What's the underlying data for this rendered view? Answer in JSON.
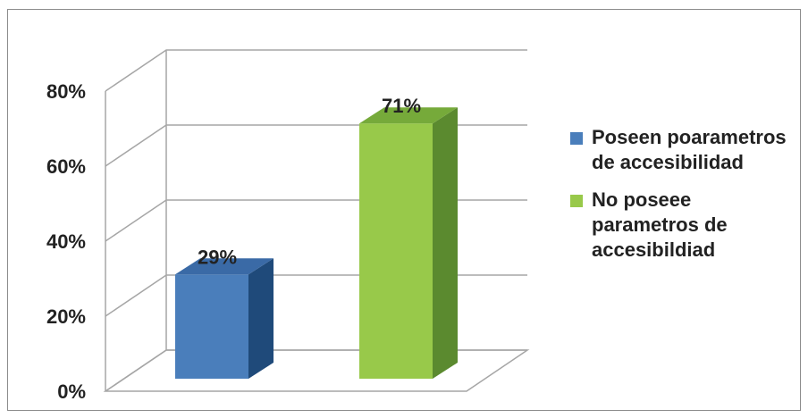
{
  "chart_data": {
    "type": "bar",
    "categories": [
      "Poseen poarametros de accesibilidad",
      "No poseee parametros de accesibildiad"
    ],
    "values": [
      29,
      71
    ],
    "data_labels": [
      "29%",
      "71%"
    ],
    "ylim": [
      0,
      80
    ],
    "yticks": [
      "0%",
      "20%",
      "40%",
      "60%",
      "80%"
    ],
    "colors": {
      "series1": "#4a7ebb",
      "series2": "#98c94a"
    },
    "grid": true,
    "legend": "right"
  },
  "legend": [
    {
      "label": "Poseen poarametros de accesibilidad",
      "color": "#4a7ebb"
    },
    {
      "label": "No poseee parametros de accesibildiad",
      "color": "#98c94a"
    }
  ]
}
